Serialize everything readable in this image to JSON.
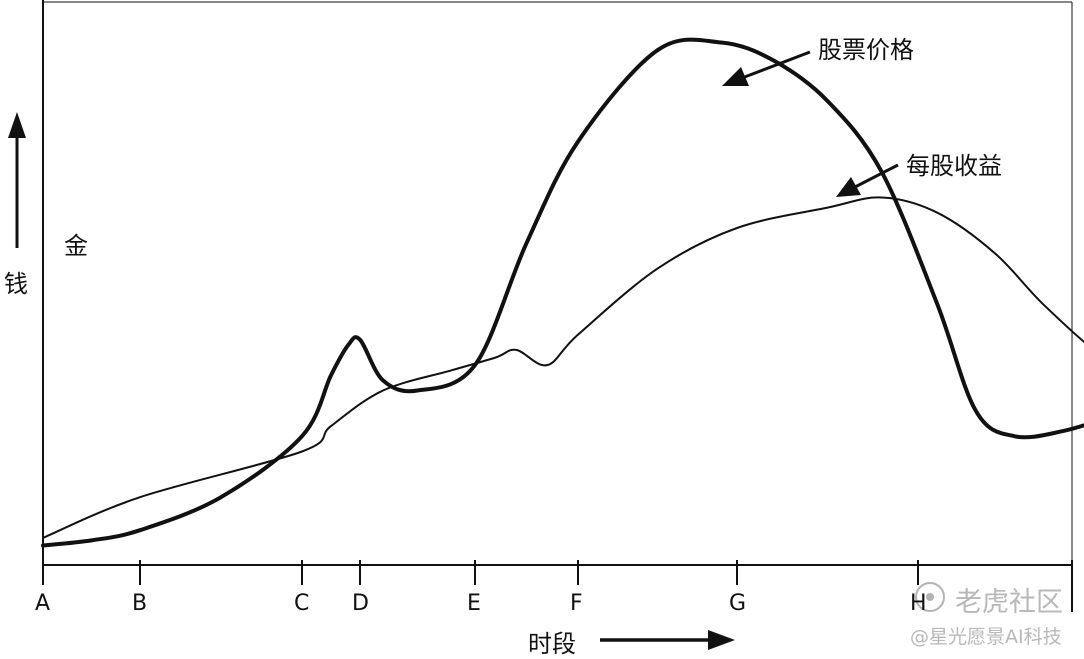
{
  "chart_data": {
    "type": "line",
    "title": "",
    "xlabel": "时段",
    "ylabel": "钱",
    "side_label": "金",
    "x_ticks": [
      "A",
      "B",
      "C",
      "D",
      "E",
      "F",
      "G",
      "H"
    ],
    "ylim": [
      0,
      100
    ],
    "grid": false,
    "series": [
      {
        "name": "股票价格",
        "stroke": "#111111",
        "width": 4,
        "points": [
          [
            0.0,
            0.5
          ],
          [
            0.5,
            1.5
          ],
          [
            1.0,
            3.5
          ],
          [
            1.5,
            10
          ],
          [
            2.0,
            22
          ],
          [
            2.5,
            34
          ],
          [
            2.8,
            40
          ],
          [
            3.0,
            41
          ],
          [
            3.2,
            33
          ],
          [
            3.5,
            31
          ],
          [
            4.0,
            36
          ],
          [
            4.5,
            60
          ],
          [
            5.0,
            80
          ],
          [
            5.5,
            98
          ],
          [
            5.9,
            99.5
          ],
          [
            6.2,
            96
          ],
          [
            6.5,
            88
          ],
          [
            6.8,
            74
          ],
          [
            7.2,
            48
          ],
          [
            7.6,
            27
          ],
          [
            8.0,
            22
          ],
          [
            8.5,
            23
          ],
          [
            9.0,
            26
          ],
          [
            9.6,
            31
          ]
        ]
      },
      {
        "name": "每股收益",
        "stroke": "#111111",
        "width": 2,
        "points": [
          [
            0.0,
            2
          ],
          [
            1.0,
            10
          ],
          [
            2.0,
            19
          ],
          [
            2.5,
            24
          ],
          [
            3.2,
            31
          ],
          [
            3.8,
            35
          ],
          [
            4.2,
            37.5
          ],
          [
            4.4,
            39
          ],
          [
            4.7,
            36
          ],
          [
            5.0,
            42
          ],
          [
            5.5,
            55
          ],
          [
            6.0,
            63
          ],
          [
            6.5,
            67
          ],
          [
            6.8,
            69
          ],
          [
            7.2,
            66
          ],
          [
            7.8,
            58
          ],
          [
            8.3,
            48
          ],
          [
            8.9,
            38
          ],
          [
            9.3,
            35
          ],
          [
            9.6,
            35
          ]
        ]
      }
    ],
    "annotations": [
      "股票价格",
      "每股收益"
    ]
  },
  "watermark": {
    "line1": "老虎社区",
    "line2": "@星光愿景AI科技"
  }
}
